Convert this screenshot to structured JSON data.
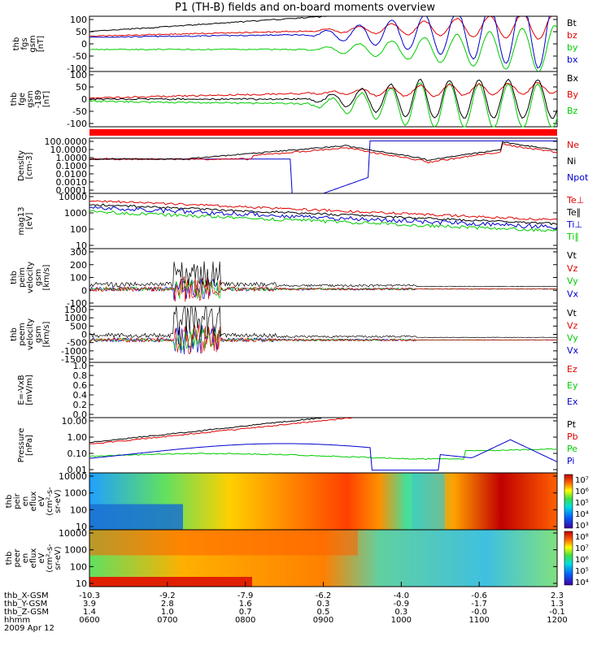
{
  "title": "P1 (TH-B) fields and on-board moments overview",
  "colors": {
    "black": "#000000",
    "red": "#e00000",
    "green": "#00cc00",
    "blue": "#0000cc"
  },
  "chart_data": [
    {
      "type": "line",
      "ylabel": [
        "thb",
        "fgs",
        "gsm",
        "[nT]"
      ],
      "ylim": [
        -100,
        100
      ],
      "yticks": [
        "100",
        "50",
        "0",
        "-50",
        "-100"
      ],
      "legend": [
        {
          "name": "Bt",
          "color": "#000000"
        },
        {
          "name": "bz",
          "color": "#e00000"
        },
        {
          "name": "by",
          "color": "#00cc00"
        },
        {
          "name": "bx",
          "color": "#0000cc"
        }
      ]
    },
    {
      "type": "line",
      "ylabel": [
        "thb",
        "fge",
        "gsm",
        "-189",
        "[nT]"
      ],
      "ylim": [
        -120,
        120
      ],
      "yticks": [
        "100",
        "50",
        "0",
        "-50",
        "-100"
      ],
      "legend": [
        {
          "name": "Bx",
          "color": "#000000"
        },
        {
          "name": "By",
          "color": "#e00000"
        },
        {
          "name": "Bz",
          "color": "#00cc00"
        }
      ]
    },
    {
      "type": "line",
      "ylabel": [
        "Density",
        "[cm-3]"
      ],
      "log": true,
      "yticks": [
        "100.0000",
        "10.0000",
        "1.0000",
        "0.1000",
        "0.0100",
        "0.0010",
        "0.0001"
      ],
      "legend": [
        {
          "name": "Ne",
          "color": "#e00000"
        },
        {
          "name": "Ni",
          "color": "#000000"
        },
        {
          "name": "Npot",
          "color": "#0000cc"
        }
      ]
    },
    {
      "type": "line",
      "ylabel": [
        "mag13",
        "[eV]"
      ],
      "log": true,
      "yticks": [
        "10000",
        "1000",
        "100",
        "10"
      ],
      "legend": [
        {
          "name": "Te⊥",
          "color": "#e00000"
        },
        {
          "name": "Te∥",
          "color": "#000000"
        },
        {
          "name": "Ti⊥",
          "color": "#0000cc"
        },
        {
          "name": "Ti∥",
          "color": "#00cc00"
        }
      ]
    },
    {
      "type": "line",
      "ylabel": [
        "thb",
        "peim",
        "velocity",
        "gsm",
        "[km/s]"
      ],
      "yticks": [
        "300",
        "200",
        "100",
        "0",
        "-100"
      ],
      "legend": [
        {
          "name": "Vt",
          "color": "#000000"
        },
        {
          "name": "Vz",
          "color": "#e00000"
        },
        {
          "name": "Vy",
          "color": "#00cc00"
        },
        {
          "name": "Vx",
          "color": "#0000cc"
        }
      ]
    },
    {
      "type": "line",
      "ylabel": [
        "thb",
        "peem",
        "velocity",
        "gsm",
        "[km/s]"
      ],
      "yticks": [
        "1500",
        "1000",
        "500",
        "0",
        "-500",
        "-1000",
        "-1500"
      ],
      "legend": [
        {
          "name": "Vt",
          "color": "#000000"
        },
        {
          "name": "Vz",
          "color": "#e00000"
        },
        {
          "name": "Vy",
          "color": "#00cc00"
        },
        {
          "name": "Vx",
          "color": "#0000cc"
        }
      ]
    },
    {
      "type": "line",
      "ylabel": [
        "E=-VxB",
        "[mV/m]"
      ],
      "ylim": [
        0,
        1
      ],
      "yticks": [
        "1.0",
        "0.8",
        "0.6",
        "0.4",
        "0.2",
        "0.0"
      ],
      "legend": [
        {
          "name": "Ez",
          "color": "#e00000"
        },
        {
          "name": "Ey",
          "color": "#00cc00"
        },
        {
          "name": "Ex",
          "color": "#0000cc"
        }
      ]
    },
    {
      "type": "line",
      "ylabel": [
        "Pressure",
        "[nPa]"
      ],
      "log": true,
      "yticks": [
        "10.00",
        "1.00",
        "0.10",
        "0.01"
      ],
      "legend": [
        {
          "name": "Pt",
          "color": "#000000"
        },
        {
          "name": "Pb",
          "color": "#e00000"
        },
        {
          "name": "Pe",
          "color": "#00cc00"
        },
        {
          "name": "Pi",
          "color": "#0000cc"
        }
      ]
    },
    {
      "type": "heatmap",
      "ylabel": [
        "thb",
        "peir",
        "en",
        "eflux",
        "eV",
        "(cm²-s-",
        "sr-eV)"
      ],
      "yticks": [
        "10000",
        "1000",
        "100",
        "10"
      ],
      "colorbar": [
        "10⁷",
        "10⁶",
        "10⁵",
        "10⁴",
        "10³"
      ]
    },
    {
      "type": "heatmap",
      "ylabel": [
        "thb",
        "peer",
        "en",
        "eflux",
        "eV",
        "(cm²-s-",
        "sr-eV)"
      ],
      "yticks": [
        "10000",
        "1000",
        "100",
        "10"
      ],
      "colorbar": [
        "10⁸",
        "10⁷",
        "10⁶",
        "10⁵",
        "10⁴"
      ]
    }
  ],
  "x_axis": {
    "rows": [
      {
        "label": "thb_X-GSM",
        "values": [
          "-10.3",
          "-9.2",
          "-7.9",
          "-6.2",
          "-4.0",
          "-0.6",
          "2.3"
        ]
      },
      {
        "label": "thb_Y-GSM",
        "values": [
          "3.9",
          "2.8",
          "1.6",
          "0.3",
          "-0.9",
          "-1.7",
          "1.3"
        ]
      },
      {
        "label": "thb_Z-GSM",
        "values": [
          "1.4",
          "1.0",
          "0.7",
          "0.5",
          "0.3",
          "-0.0",
          "-0.1"
        ]
      },
      {
        "label": "hhmm",
        "values": [
          "0600",
          "0700",
          "0800",
          "0900",
          "1000",
          "1100",
          "1200"
        ]
      }
    ],
    "date": "2009 Apr 12"
  }
}
